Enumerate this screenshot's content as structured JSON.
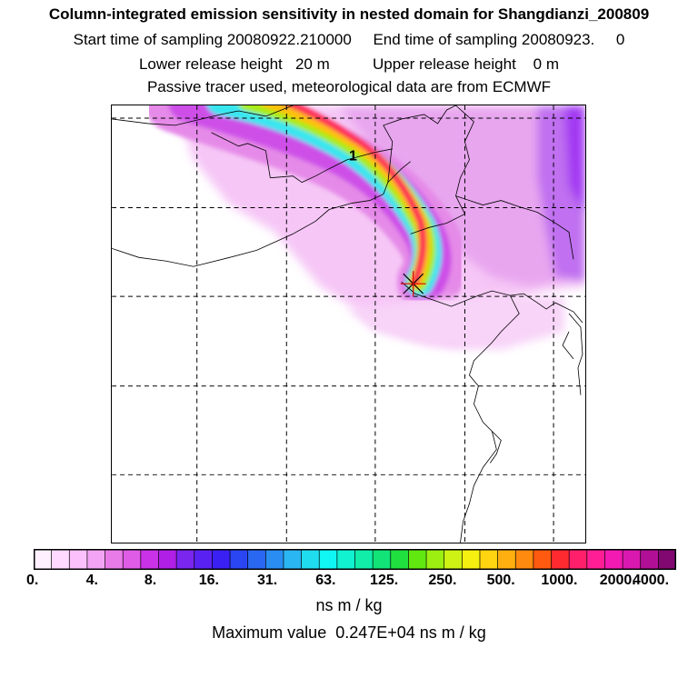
{
  "header": {
    "title": "Column-integrated emission sensitivity in nested domain for Shangdianzi_200809",
    "sampling": "Start time of sampling 20080922.210000     End time of sampling 20080923.     0",
    "release": "Lower release height   20 m          Upper release height    0 m",
    "tracer": "Passive tracer used, meteorological data are from ECMWF"
  },
  "map": {
    "plume_label": "1",
    "receptor": "Shangdianzi"
  },
  "colorbar": {
    "tick_labels": [
      "0.",
      "4.",
      "8.",
      "16.",
      "31.",
      "63.",
      "125.",
      "250.",
      "500.",
      "1000.",
      "2000.",
      "4000."
    ],
    "colors": [
      "#fff0ff",
      "#ffd9ff",
      "#fcc0fc",
      "#f4a4f4",
      "#e97be9",
      "#de5ce6",
      "#c932e6",
      "#b01fe6",
      "#7a26ef",
      "#5a22f2",
      "#3a20f2",
      "#2a45f2",
      "#2a68f2",
      "#2a8df2",
      "#2ab6f2",
      "#20dcef",
      "#10f6f2",
      "#10f2d0",
      "#10eeaa",
      "#12e478",
      "#20e040",
      "#60e810",
      "#9cef10",
      "#cff215",
      "#f6f010",
      "#ffd410",
      "#ffb010",
      "#ff8a10",
      "#ff5a10",
      "#ff2a30",
      "#ff1f6b",
      "#ff1e95",
      "#f31ab3",
      "#d918b0",
      "#b00f96",
      "#800870"
    ],
    "units": "ns m / kg",
    "max_value": "Maximum value  0.247E+04 ns m / kg"
  }
}
